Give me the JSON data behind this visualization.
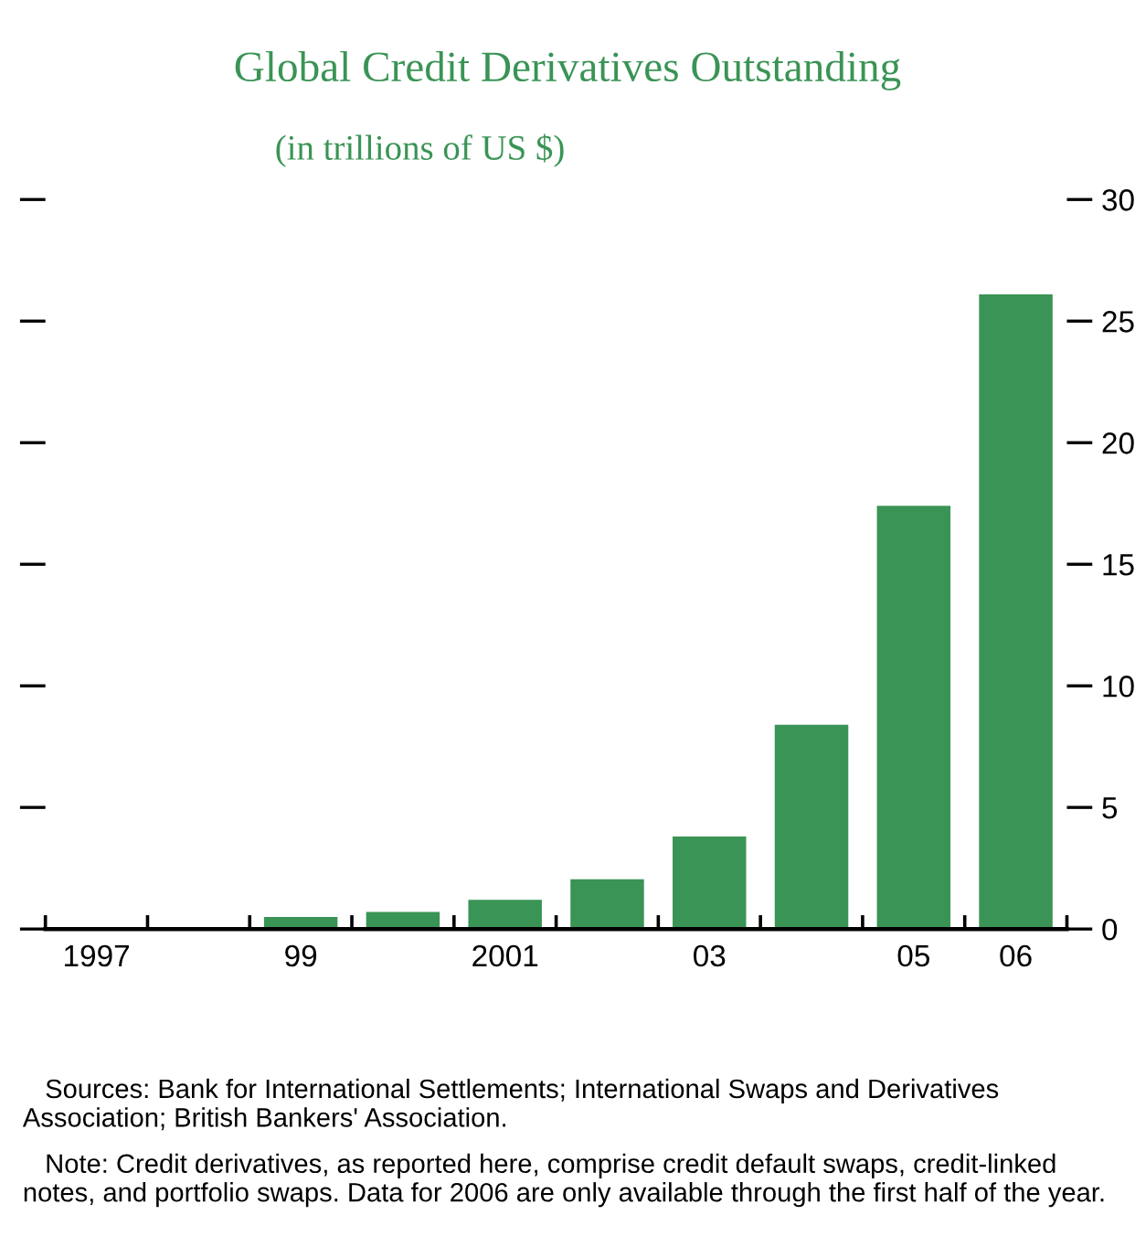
{
  "chart_data": {
    "type": "bar",
    "title": "Global Credit Derivatives Outstanding",
    "subtitle": "(in trillions of US $)",
    "categories": [
      "1997",
      null,
      "99",
      null,
      "2001",
      null,
      "03",
      null,
      "05",
      "06"
    ],
    "values": [
      null,
      null,
      0.5,
      0.7,
      1.2,
      2.05,
      3.8,
      8.4,
      17.4,
      26.1
    ],
    "color": "#3a9455",
    "ylim": [
      0,
      30
    ],
    "yticks": [
      0,
      5,
      10,
      15,
      20,
      25,
      30
    ],
    "grid": false,
    "annotations": [
      "Sources: Bank for International Settlements; International Swaps and Derivatives Association; British Bankers' Association.",
      "Note: Credit derivatives, as reported here, comprise credit default swaps, credit-linked notes, and portfolio swaps. Data for 2006 are only available through the first half of the year."
    ]
  }
}
